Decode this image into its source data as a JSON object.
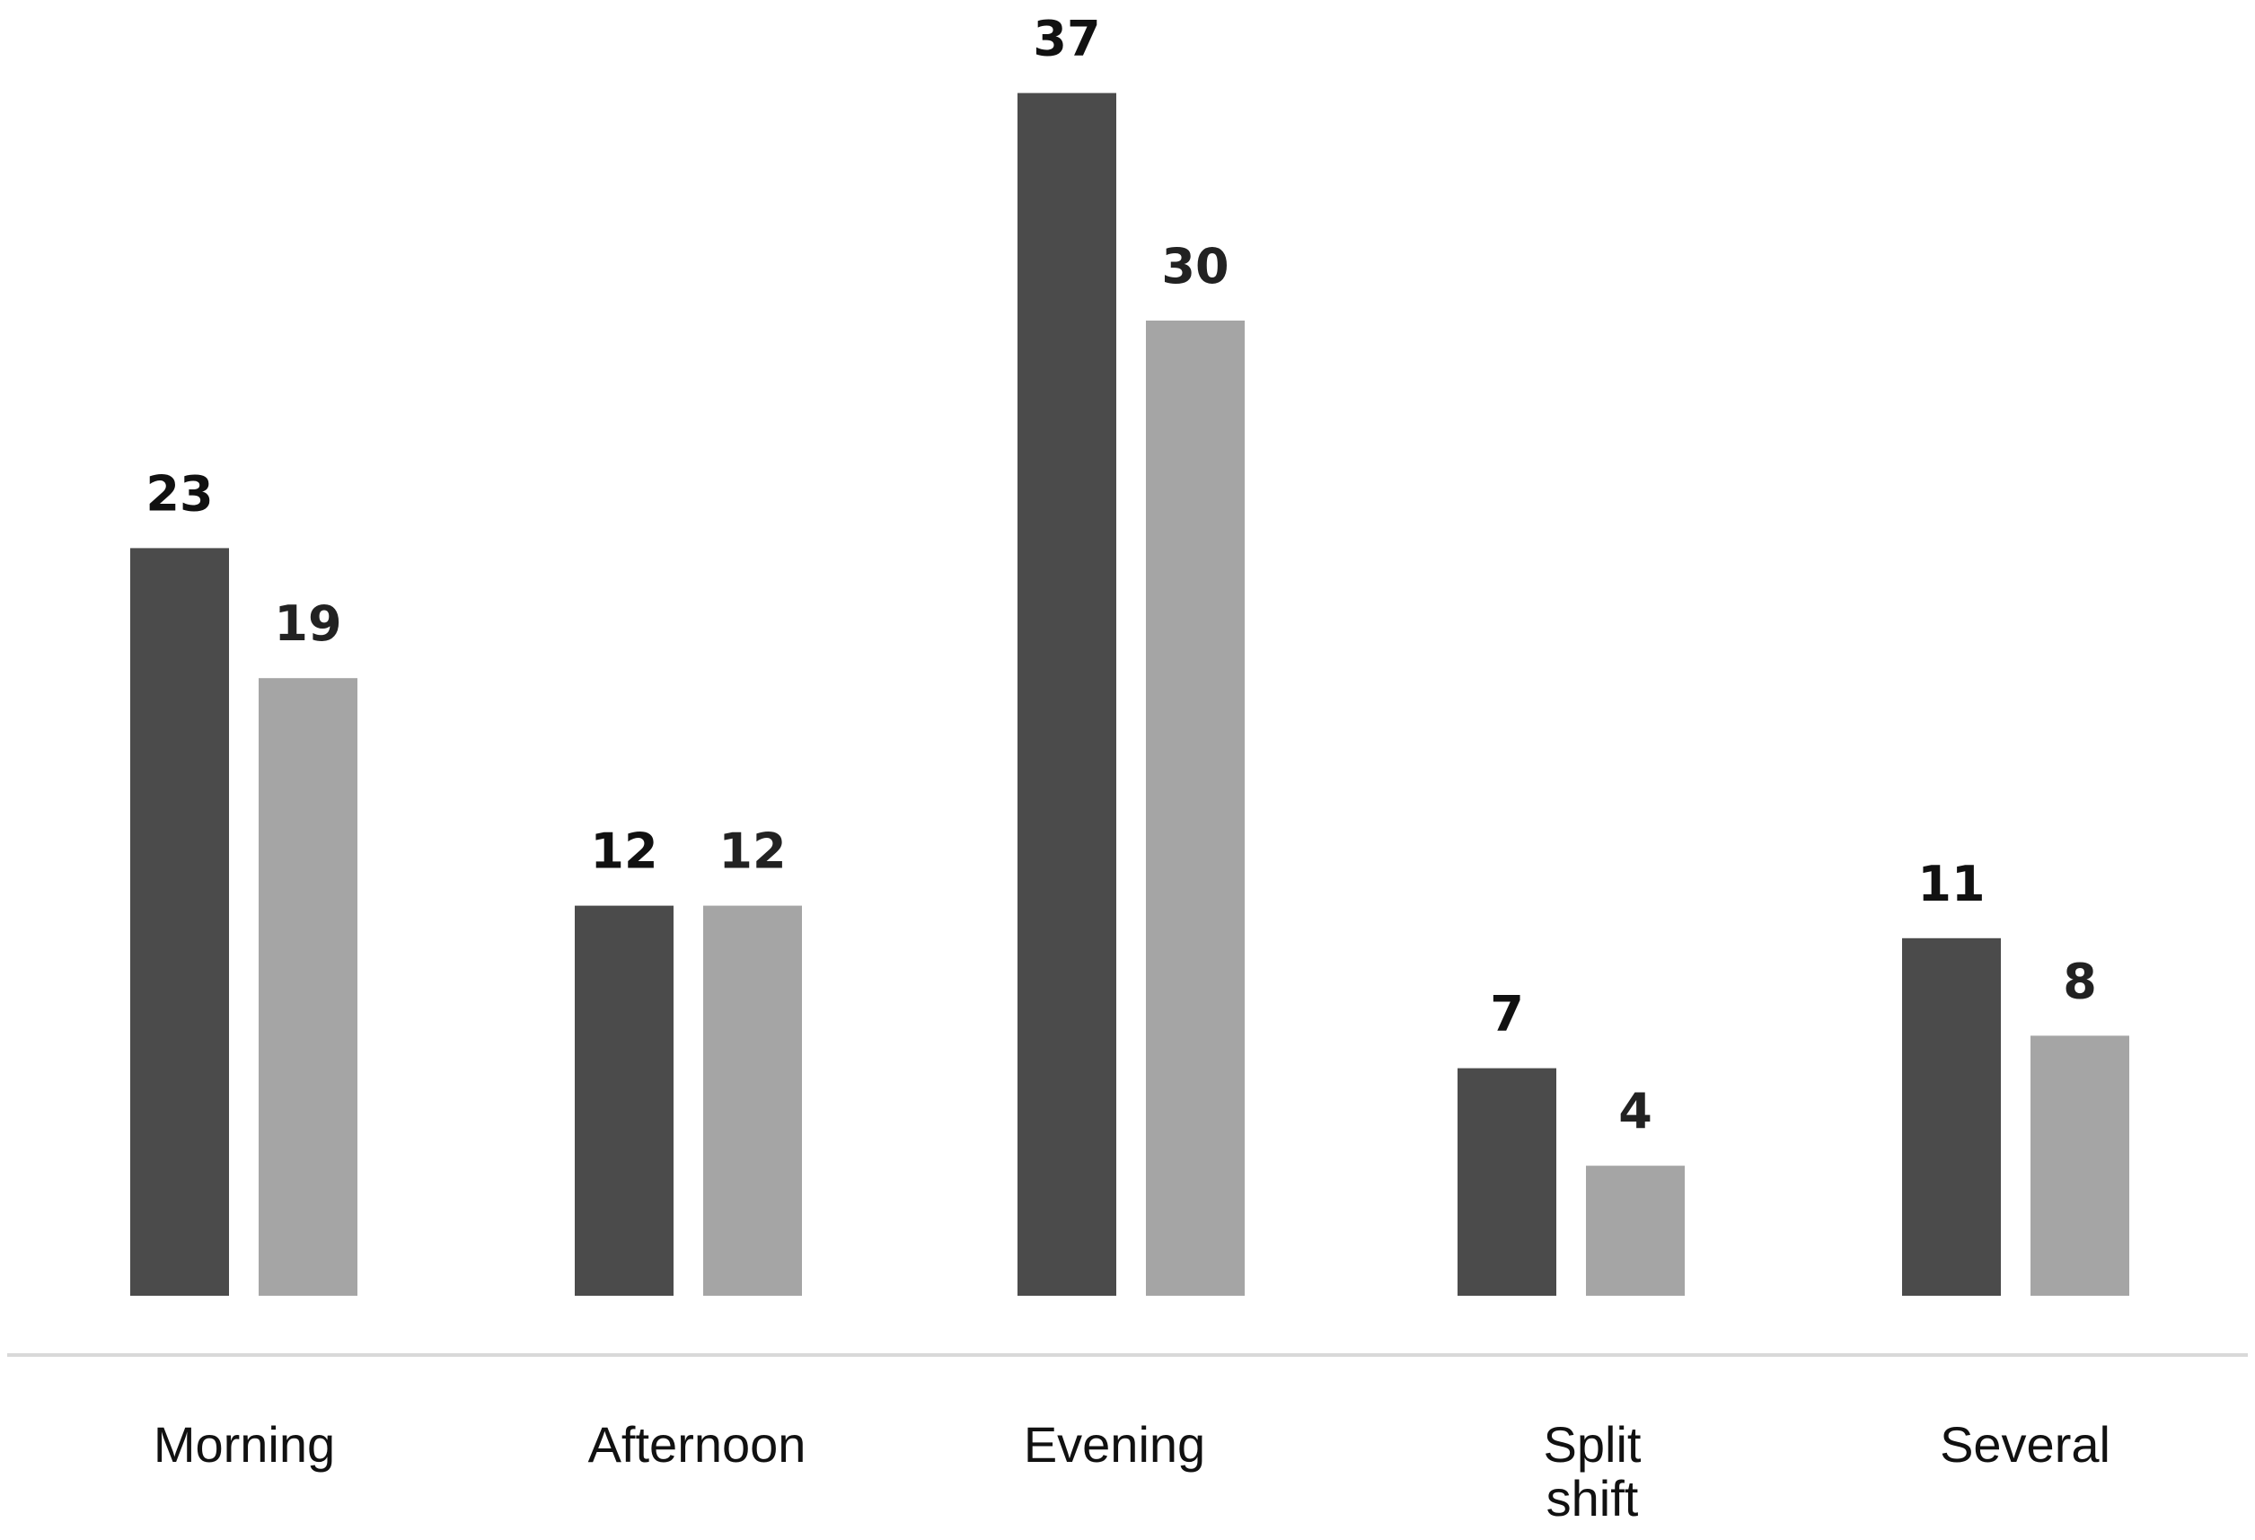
{
  "chart_data": {
    "type": "bar",
    "title": "",
    "xlabel": "",
    "ylabel": "",
    "ylim": [
      0,
      37
    ],
    "grid": false,
    "legend": "none",
    "categories": [
      [
        "Morning"
      ],
      [
        "Afternoon"
      ],
      [
        "Evening"
      ],
      [
        "Split",
        "shift"
      ],
      [
        "Several"
      ]
    ],
    "series": [
      {
        "values": [
          23,
          12,
          37,
          7,
          11
        ],
        "color": "#4b4b4b",
        "label_color": "#111111"
      },
      {
        "values": [
          19,
          12,
          30,
          4,
          8
        ],
        "color": "#a5a5a5",
        "label_color": "#222222"
      }
    ],
    "axis_color": "#d9d9d9"
  }
}
